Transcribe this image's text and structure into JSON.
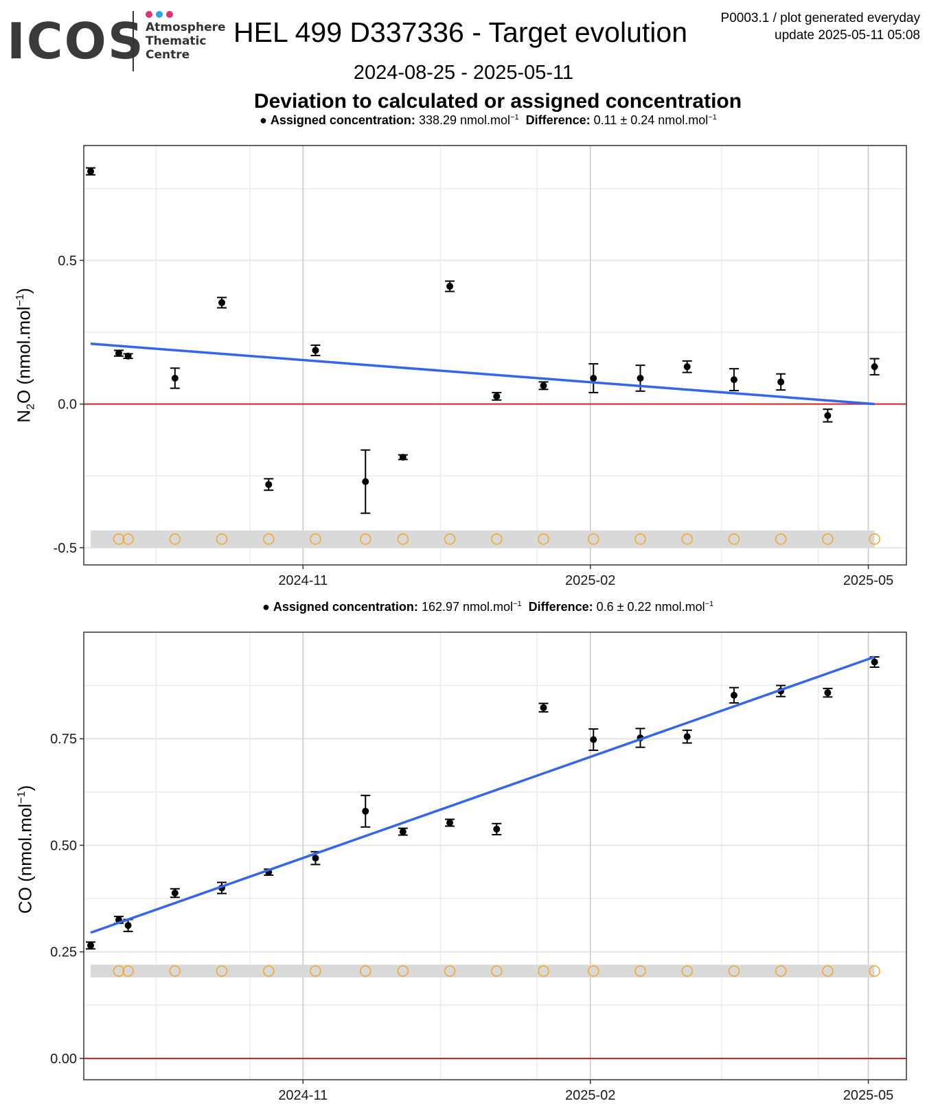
{
  "header": {
    "logo_text": "ICOS",
    "logo_subtitle": [
      "Atmosphere",
      "Thematic",
      "Centre"
    ],
    "logo_dot_colors": [
      "#e2316f",
      "#2aa9e0",
      "#e2316f"
    ],
    "title": "HEL 499 D337336 - Target evolution",
    "meta_line1": "P0003.1 / plot generated everyday",
    "meta_line2": "update  2025-05-11 05:08",
    "date_range": "2024-08-25 - 2025-05-11",
    "subtitle": "Deviation to calculated or assigned concentration"
  },
  "captions": [
    {
      "label1": "Assigned concentration:",
      "value1": "338.29 nmol.mol",
      "label2": "Difference:",
      "value2": "0.11 ± 0.24 nmol.mol"
    },
    {
      "label1": "Assigned concentration:",
      "value1": "162.97 nmol.mol",
      "label2": "Difference:",
      "value2": "0.6 ± 0.22 nmol.mol"
    }
  ],
  "colors": {
    "points": "#000000",
    "trend": "#3366ee",
    "zero_line": "#e02020",
    "ring": "#f5a623",
    "band": "#d9d9d9",
    "grid": "#ebebeb",
    "grid_major": "#c8c8c8"
  },
  "chart_data": [
    {
      "type": "scatter",
      "ylabel": "N2O (nmol.mol-1)",
      "ylabel_parts": {
        "a": "N",
        "sub": "2",
        "b": "O (nmol.mol",
        "sup": "−1",
        "c": ")"
      },
      "xlim": [
        "2024-08-25",
        "2025-05-11"
      ],
      "ylim": [
        -0.56,
        0.9
      ],
      "yticks": [
        -0.5,
        0.0,
        0.5
      ],
      "ytick_labels": [
        "-0.5",
        "0.0",
        "0.5"
      ],
      "xticks": [
        "2024-11-01",
        "2025-02-01",
        "2025-05-01"
      ],
      "xtick_labels": [
        "2024-11",
        "2025-02",
        "2025-05"
      ],
      "grid": true,
      "points": [
        {
          "x": "2024-08-25",
          "y": 0.81,
          "err": 0.012
        },
        {
          "x": "2024-09-03",
          "y": 0.177,
          "err": 0.01
        },
        {
          "x": "2024-09-06",
          "y": 0.167,
          "err": 0.008
        },
        {
          "x": "2024-09-21",
          "y": 0.09,
          "err": 0.035
        },
        {
          "x": "2024-10-06",
          "y": 0.353,
          "err": 0.018
        },
        {
          "x": "2024-10-21",
          "y": -0.28,
          "err": 0.02
        },
        {
          "x": "2024-11-05",
          "y": 0.187,
          "err": 0.018
        },
        {
          "x": "2024-11-21",
          "y": -0.27,
          "err": 0.11
        },
        {
          "x": "2024-12-03",
          "y": -0.185,
          "err": 0.008
        },
        {
          "x": "2024-12-18",
          "y": 0.41,
          "err": 0.018
        },
        {
          "x": "2025-01-02",
          "y": 0.027,
          "err": 0.013
        },
        {
          "x": "2025-01-17",
          "y": 0.064,
          "err": 0.013
        },
        {
          "x": "2025-02-02",
          "y": 0.09,
          "err": 0.05
        },
        {
          "x": "2025-02-17",
          "y": 0.09,
          "err": 0.045
        },
        {
          "x": "2025-03-04",
          "y": 0.13,
          "err": 0.02
        },
        {
          "x": "2025-03-19",
          "y": 0.085,
          "err": 0.038
        },
        {
          "x": "2025-04-03",
          "y": 0.077,
          "err": 0.028
        },
        {
          "x": "2025-04-18",
          "y": -0.04,
          "err": 0.022
        },
        {
          "x": "2025-05-03",
          "y": 0.13,
          "err": 0.028
        }
      ],
      "trend": {
        "x": [
          "2024-08-25",
          "2025-05-03"
        ],
        "y": [
          0.21,
          0.0
        ]
      },
      "zero_line": 0,
      "band": {
        "y": [
          -0.5,
          -0.44
        ]
      },
      "rings_y": -0.47,
      "rings_x": [
        "2024-09-03",
        "2024-09-06",
        "2024-09-21",
        "2024-10-06",
        "2024-10-21",
        "2024-11-05",
        "2024-11-21",
        "2024-12-03",
        "2024-12-18",
        "2025-01-02",
        "2025-01-17",
        "2025-02-02",
        "2025-02-17",
        "2025-03-04",
        "2025-03-19",
        "2025-04-03",
        "2025-04-18",
        "2025-05-03"
      ]
    },
    {
      "type": "scatter",
      "ylabel": "CO (nmol.mol-1)",
      "ylabel_parts": {
        "a": "CO (nmol.mol",
        "sub": "",
        "b": "",
        "sup": "−1",
        "c": ")"
      },
      "xlim": [
        "2024-08-25",
        "2025-05-11"
      ],
      "ylim": [
        -0.05,
        1.0
      ],
      "yticks": [
        0.0,
        0.25,
        0.5,
        0.75
      ],
      "ytick_labels": [
        "0.00",
        "0.25",
        "0.50",
        "0.75"
      ],
      "xticks": [
        "2024-11-01",
        "2025-02-01",
        "2025-05-01"
      ],
      "xtick_labels": [
        "2024-11",
        "2025-02",
        "2025-05"
      ],
      "grid": true,
      "points": [
        {
          "x": "2024-08-25",
          "y": 0.265,
          "err": 0.008
        },
        {
          "x": "2024-09-03",
          "y": 0.325,
          "err": 0.008
        },
        {
          "x": "2024-09-06",
          "y": 0.312,
          "err": 0.014
        },
        {
          "x": "2024-09-21",
          "y": 0.388,
          "err": 0.01
        },
        {
          "x": "2024-10-06",
          "y": 0.4,
          "err": 0.013
        },
        {
          "x": "2024-10-21",
          "y": 0.437,
          "err": 0.007
        },
        {
          "x": "2024-11-05",
          "y": 0.47,
          "err": 0.015
        },
        {
          "x": "2024-11-21",
          "y": 0.58,
          "err": 0.037
        },
        {
          "x": "2024-12-03",
          "y": 0.532,
          "err": 0.008
        },
        {
          "x": "2024-12-18",
          "y": 0.553,
          "err": 0.008
        },
        {
          "x": "2025-01-02",
          "y": 0.538,
          "err": 0.013
        },
        {
          "x": "2025-01-17",
          "y": 0.823,
          "err": 0.01
        },
        {
          "x": "2025-02-02",
          "y": 0.748,
          "err": 0.025
        },
        {
          "x": "2025-02-17",
          "y": 0.752,
          "err": 0.022
        },
        {
          "x": "2025-03-04",
          "y": 0.755,
          "err": 0.015
        },
        {
          "x": "2025-03-19",
          "y": 0.852,
          "err": 0.018
        },
        {
          "x": "2025-04-03",
          "y": 0.862,
          "err": 0.013
        },
        {
          "x": "2025-04-18",
          "y": 0.858,
          "err": 0.01
        },
        {
          "x": "2025-05-03",
          "y": 0.93,
          "err": 0.012
        }
      ],
      "trend": {
        "x": [
          "2024-08-25",
          "2025-05-03"
        ],
        "y": [
          0.295,
          0.942
        ]
      },
      "zero_line": 0,
      "band": {
        "y": [
          0.19,
          0.22
        ]
      },
      "rings_y": 0.205,
      "rings_x": [
        "2024-09-03",
        "2024-09-06",
        "2024-09-21",
        "2024-10-06",
        "2024-10-21",
        "2024-11-05",
        "2024-11-21",
        "2024-12-03",
        "2024-12-18",
        "2025-01-02",
        "2025-01-17",
        "2025-02-02",
        "2025-02-17",
        "2025-03-04",
        "2025-03-19",
        "2025-04-03",
        "2025-04-18",
        "2025-05-03"
      ]
    }
  ]
}
